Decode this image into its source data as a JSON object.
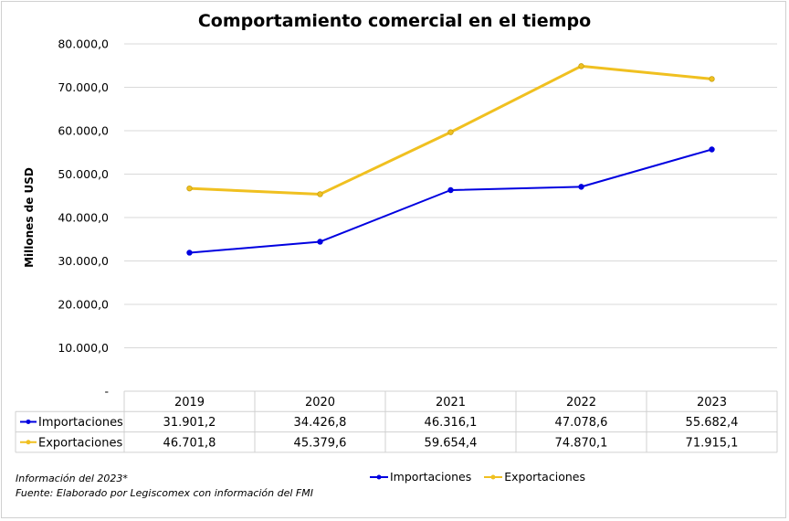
{
  "chart_data": {
    "type": "line",
    "title": "Comportamiento comercial en el tiempo",
    "ylabel": "Millones de USD",
    "xlabel": "",
    "categories": [
      "2019",
      "2020",
      "2021",
      "2022",
      "2023"
    ],
    "ylim": [
      0,
      80000
    ],
    "yticks": [
      0,
      10000,
      20000,
      30000,
      40000,
      50000,
      60000,
      70000,
      80000
    ],
    "ytick_labels": [
      "-",
      "10.000,0",
      "20.000,0",
      "30.000,0",
      "40.000,0",
      "50.000,0",
      "60.000,0",
      "70.000,0",
      "80.000,0"
    ],
    "grid": true,
    "legend_position": "bottom",
    "series": [
      {
        "name": "Importaciones",
        "color": "#0000e0",
        "values": [
          31901.2,
          34426.8,
          46316.1,
          47078.6,
          55682.4
        ],
        "value_labels": [
          "31.901,2",
          "34.426,8",
          "46.316,1",
          "47.078,6",
          "55.682,4"
        ]
      },
      {
        "name": "Exportaciones",
        "color": "#f0c020",
        "values": [
          46701.8,
          45379.6,
          59654.4,
          74870.1,
          71915.1
        ],
        "value_labels": [
          "46.701,8",
          "45.379,6",
          "59.654,4",
          "74.870,1",
          "71.915,1"
        ]
      }
    ],
    "data_table": true
  },
  "footnotes": {
    "info": "Información del 2023*",
    "source": "Fuente: Elaborado por Legiscomex con información del FMI"
  }
}
